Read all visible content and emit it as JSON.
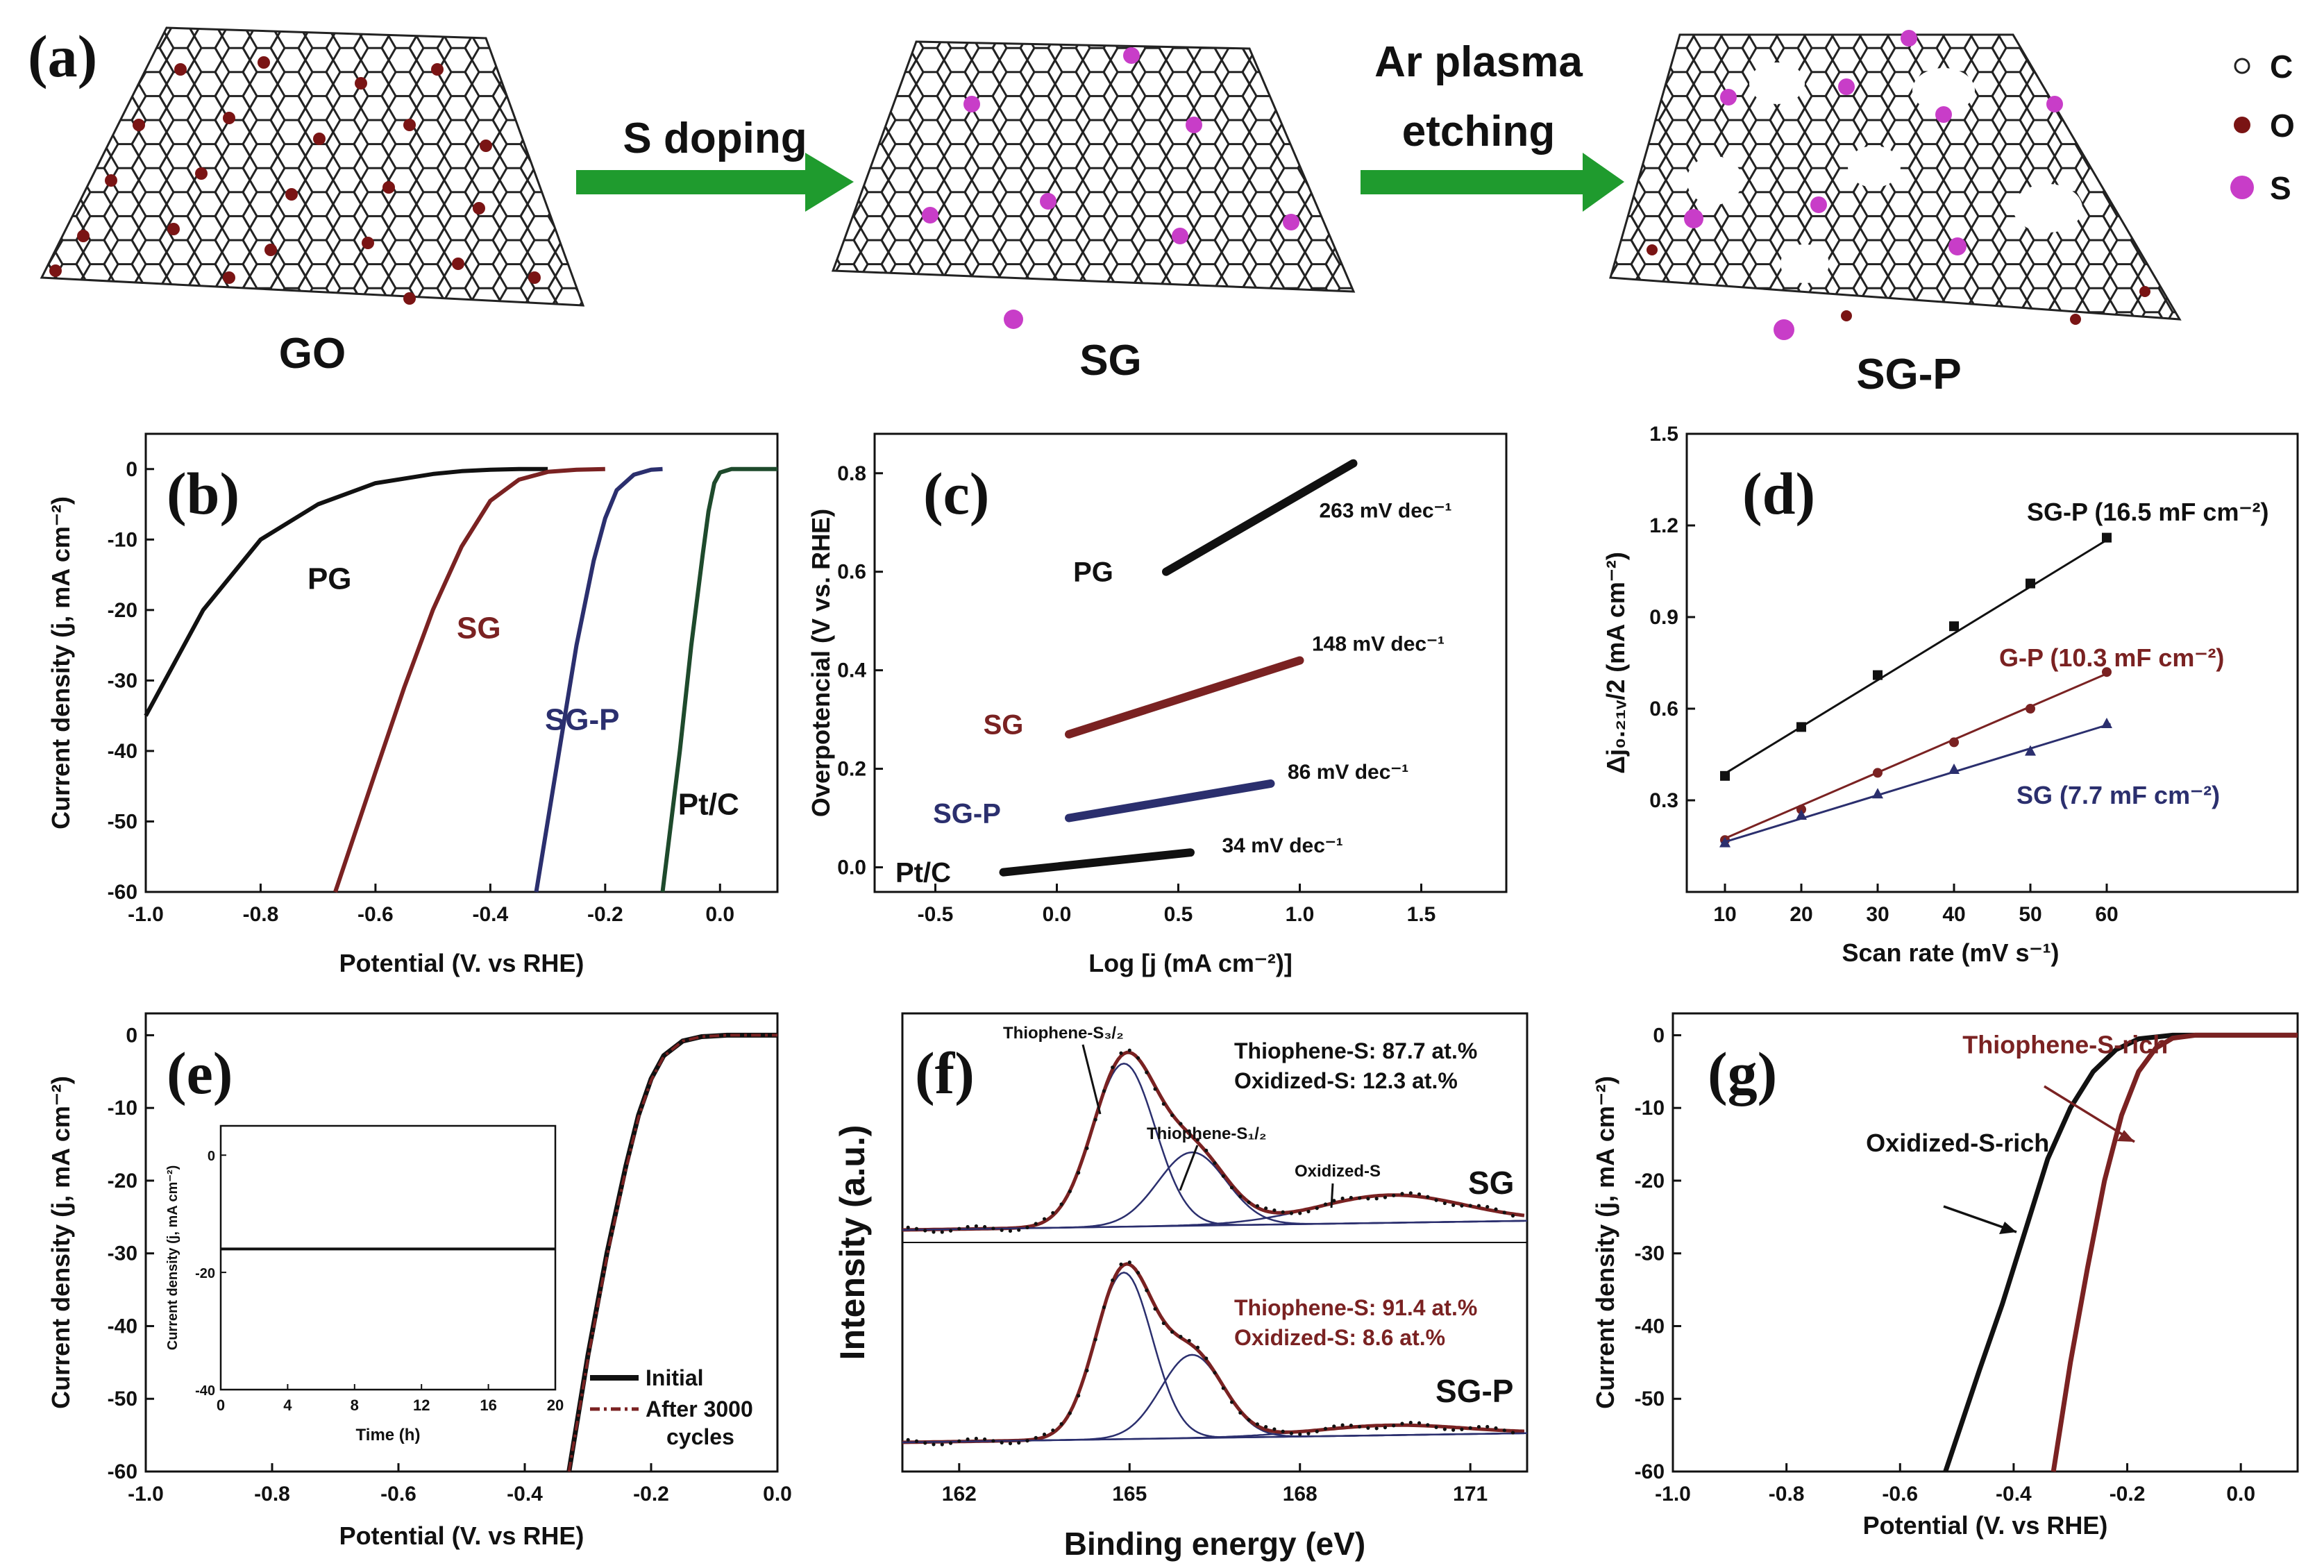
{
  "colors": {
    "black": "#111111",
    "darkred": "#7a2222",
    "navy": "#2b2f6e",
    "darkgreen": "#1e4a2c",
    "arrow": "#1f9b2e",
    "sulfur": "#c83dc8",
    "oxygen": "#7a1414"
  },
  "schematic": {
    "panel": "(a)",
    "labels": [
      "GO",
      "SG",
      "SG-P"
    ],
    "arrow1": "S doping",
    "arrow2_line1": "Ar plasma",
    "arrow2_line2": "etching",
    "legend": [
      {
        "symbol": "C",
        "icon": "carbon-atom-icon"
      },
      {
        "symbol": "O",
        "icon": "oxygen-atom-icon"
      },
      {
        "symbol": "S",
        "icon": "sulfur-atom-icon"
      }
    ]
  },
  "chart_data": [
    {
      "panel": "(b)",
      "type": "line",
      "xlabel": "Potential (V. vs RHE)",
      "ylabel": "Current density (j, mA cm⁻²)",
      "xlim": [
        -1.0,
        0.1
      ],
      "ylim": [
        -60,
        5
      ],
      "xticks": [
        "-1.0",
        "-0.8",
        "-0.6",
        "-0.4",
        "-0.2",
        "0.0"
      ],
      "yticks": [
        "0",
        "-10",
        "-20",
        "-30",
        "-40",
        "-50",
        "-60"
      ],
      "series": [
        {
          "name": "PG",
          "color": "#111111",
          "x": [
            -1.0,
            -0.9,
            -0.8,
            -0.7,
            -0.6,
            -0.5,
            -0.45,
            -0.4,
            -0.35,
            -0.3
          ],
          "y": [
            -35,
            -20,
            -10,
            -5,
            -2,
            -0.7,
            -0.3,
            -0.1,
            0,
            0
          ]
        },
        {
          "name": "SG",
          "color": "#7a2222",
          "x": [
            -0.67,
            -0.6,
            -0.55,
            -0.5,
            -0.45,
            -0.4,
            -0.35,
            -0.3,
            -0.25,
            -0.2
          ],
          "y": [
            -60,
            -43,
            -31,
            -20,
            -11,
            -4.5,
            -1.5,
            -0.4,
            -0.1,
            0
          ]
        },
        {
          "name": "SG-P",
          "color": "#2b2f6e",
          "x": [
            -0.32,
            -0.28,
            -0.25,
            -0.22,
            -0.2,
            -0.18,
            -0.15,
            -0.12,
            -0.1
          ],
          "y": [
            -60,
            -40,
            -25,
            -13,
            -7,
            -3,
            -0.8,
            -0.1,
            0
          ]
        },
        {
          "name": "Pt/C",
          "color": "#1e4a2c",
          "x": [
            -0.1,
            -0.07,
            -0.05,
            -0.03,
            -0.02,
            -0.01,
            0.0,
            0.02,
            0.1
          ],
          "y": [
            -60,
            -40,
            -25,
            -12,
            -6,
            -2,
            -0.5,
            0,
            0
          ]
        }
      ],
      "annotations": [
        {
          "text": "PG",
          "x": -0.68,
          "y": -17
        },
        {
          "text": "SG",
          "x": -0.42,
          "y": -24
        },
        {
          "text": "SG-P",
          "x": -0.24,
          "y": -37
        },
        {
          "text": "Pt/C",
          "x": -0.02,
          "y": -49
        }
      ]
    },
    {
      "panel": "(c)",
      "type": "line",
      "xlabel": "Log  [j (mA cm⁻²)]",
      "ylabel": "Overpotencial  (V vs. RHE)",
      "xlim": [
        -0.75,
        1.85
      ],
      "ylim": [
        -0.05,
        0.88
      ],
      "xticks": [
        "-0.5",
        "0.0",
        "0.5",
        "1.0",
        "1.5"
      ],
      "yticks": [
        "0.0",
        "0.2",
        "0.4",
        "0.6",
        "0.8"
      ],
      "series": [
        {
          "name": "PG",
          "color": "#111111",
          "x": [
            0.45,
            1.22
          ],
          "y": [
            0.6,
            0.82
          ]
        },
        {
          "name": "SG",
          "color": "#7a2222",
          "x": [
            0.05,
            1.0
          ],
          "y": [
            0.27,
            0.42
          ]
        },
        {
          "name": "SG-P",
          "color": "#2b2f6e",
          "x": [
            0.05,
            0.88
          ],
          "y": [
            0.1,
            0.17
          ]
        },
        {
          "name": "Pt/C",
          "color": "#111111",
          "x": [
            -0.22,
            0.55
          ],
          "y": [
            -0.01,
            0.03
          ]
        }
      ],
      "labels": [
        {
          "text": "PG",
          "x": 0.15,
          "y": 0.6
        },
        {
          "text": "SG",
          "x": -0.22,
          "y": 0.29
        },
        {
          "text": "SG-P",
          "x": -0.37,
          "y": 0.11
        },
        {
          "text": "Pt/C",
          "x": -0.55,
          "y": -0.01
        }
      ],
      "slopes": [
        {
          "text": "263 mV dec⁻¹",
          "x": 1.08,
          "y": 0.71
        },
        {
          "text": "148 mV dec⁻¹",
          "x": 1.05,
          "y": 0.44
        },
        {
          "text": "86 mV dec⁻¹",
          "x": 0.95,
          "y": 0.18
        },
        {
          "text": "34 mV dec⁻¹",
          "x": 0.68,
          "y": 0.03
        }
      ]
    },
    {
      "panel": "(d)",
      "type": "scatter",
      "xlabel": "Scan rate (mV s⁻¹)",
      "ylabel": "Δj₀.₂₁ᵥ/2 (mA cm⁻²)",
      "xlim": [
        5,
        85
      ],
      "ylim": [
        0.0,
        1.5
      ],
      "xticks": [
        "10",
        "20",
        "30",
        "40",
        "50",
        "60"
      ],
      "yticks": [
        "0.3",
        "0.6",
        "0.9",
        "1.2",
        "1.5"
      ],
      "series": [
        {
          "name": "SG-P (16.5 mF cm⁻²)",
          "color": "#111111",
          "marker": "square",
          "x": [
            10,
            20,
            30,
            40,
            50,
            60
          ],
          "y": [
            0.38,
            0.54,
            0.71,
            0.87,
            1.01,
            1.16
          ]
        },
        {
          "name": "G-P (10.3 mF cm⁻²)",
          "color": "#7a2222",
          "marker": "circle",
          "x": [
            10,
            20,
            30,
            40,
            50,
            60
          ],
          "y": [
            0.17,
            0.27,
            0.39,
            0.49,
            0.6,
            0.72
          ]
        },
        {
          "name": "SG (7.7 mF cm⁻²)",
          "color": "#2b2f6e",
          "marker": "triangle",
          "x": [
            10,
            20,
            30,
            40,
            50,
            60
          ],
          "y": [
            0.16,
            0.25,
            0.32,
            0.4,
            0.46,
            0.55
          ]
        }
      ]
    },
    {
      "panel": "(e)",
      "type": "line",
      "xlabel": "Potential (V. vs RHE)",
      "ylabel": "Current density (j, mA cm⁻²)",
      "xlim": [
        -1.0,
        0.0
      ],
      "ylim": [
        -60,
        3
      ],
      "xticks": [
        "-1.0",
        "-0.8",
        "-0.6",
        "-0.4",
        "-0.2",
        "0.0"
      ],
      "yticks": [
        "0",
        "-10",
        "-20",
        "-30",
        "-40",
        "-50",
        "-60"
      ],
      "series": [
        {
          "name": "Initial",
          "color": "#111111",
          "x": [
            -0.33,
            -0.3,
            -0.27,
            -0.24,
            -0.22,
            -0.2,
            -0.18,
            -0.15,
            -0.12,
            -0.08,
            0.0
          ],
          "y": [
            -60,
            -44,
            -30,
            -18,
            -11,
            -6,
            -2.8,
            -0.8,
            -0.2,
            0,
            0
          ]
        },
        {
          "name": "After 3000 cycles",
          "color": "#7a2222",
          "dashed": true,
          "x": [
            -0.33,
            -0.3,
            -0.27,
            -0.24,
            -0.22,
            -0.2,
            -0.18,
            -0.15,
            -0.12,
            -0.08,
            0.0
          ],
          "y": [
            -60,
            -44.5,
            -30.5,
            -18.5,
            -11.3,
            -6.2,
            -2.9,
            -0.8,
            -0.2,
            0,
            0
          ]
        }
      ],
      "legend": [
        "Initial",
        "After 3000",
        "cycles"
      ],
      "inset": {
        "xlabel": "Time (h)",
        "ylabel": "Current density  (j, mA cm⁻²)",
        "xlim": [
          0,
          20
        ],
        "ylim": [
          -40,
          5
        ],
        "xticks": [
          "0",
          "4",
          "8",
          "12",
          "16",
          "20"
        ],
        "yticks": [
          "0",
          "-20",
          "-40"
        ],
        "level": -16
      }
    },
    {
      "panel": "(f)",
      "type": "line",
      "xlabel": "Binding energy (eV)",
      "ylabel": "Intensity (a.u.)",
      "xlim": [
        161,
        172
      ],
      "xticks": [
        "162",
        "165",
        "168",
        "171"
      ],
      "spectra": [
        {
          "name": "SG",
          "peaks": [
            {
              "c": 164.9,
              "h": 1.0,
              "w": 0.55
            },
            {
              "c": 166.1,
              "h": 0.45,
              "w": 0.6
            },
            {
              "c": 169.6,
              "h": 0.17,
              "w": 1.3
            }
          ],
          "base": 0
        },
        {
          "name": "SG-P",
          "peaks": [
            {
              "c": 164.9,
              "h": 1.0,
              "w": 0.5
            },
            {
              "c": 166.1,
              "h": 0.5,
              "w": 0.55
            },
            {
              "c": 169.6,
              "h": 0.06,
              "w": 1.3
            }
          ],
          "base": 0
        }
      ],
      "annotations": {
        "thio32": "Thiophene-S₃/₂",
        "thio12": "Thiophene-S₁/₂",
        "oxid": "Oxidized-S",
        "sg": "SG",
        "sgp": "SG-P",
        "sg_t": "Thiophene-S: 87.7 at.%",
        "sg_o": "Oxidized-S: 12.3 at.%",
        "sgp_t": "Thiophene-S: 91.4 at.%",
        "sgp_o": "Oxidized-S: 8.6 at.%"
      }
    },
    {
      "panel": "(g)",
      "type": "line",
      "xlabel": "Potential (V. vs RHE)",
      "ylabel": "Current density (j, mA cm⁻²)",
      "xlim": [
        -1.0,
        0.1
      ],
      "ylim": [
        -60,
        3
      ],
      "xticks": [
        "-1.0",
        "-0.8",
        "-0.6",
        "-0.4",
        "-0.2",
        "0.0"
      ],
      "yticks": [
        "0",
        "-10",
        "-20",
        "-30",
        "-40",
        "-50",
        "-60"
      ],
      "series": [
        {
          "name": "Oxidized-S-rich",
          "color": "#111111",
          "x": [
            -0.52,
            -0.46,
            -0.42,
            -0.38,
            -0.34,
            -0.3,
            -0.26,
            -0.22,
            -0.18,
            -0.12,
            0.1
          ],
          "y": [
            -60,
            -46,
            -37,
            -27,
            -17,
            -10,
            -5,
            -2,
            -0.5,
            0,
            0
          ]
        },
        {
          "name": "Thiophene-S-rich",
          "color": "#7a2222",
          "x": [
            -0.33,
            -0.3,
            -0.27,
            -0.24,
            -0.21,
            -0.18,
            -0.15,
            -0.12,
            -0.08,
            0.1
          ],
          "y": [
            -60,
            -45,
            -32,
            -20,
            -11,
            -5,
            -1.8,
            -0.4,
            0,
            0
          ]
        }
      ],
      "labels": [
        {
          "text": "Oxidized-S-rich",
          "x": -0.66,
          "y": -16
        },
        {
          "text": "Thiophene-S-rich",
          "x": -0.49,
          "y": -2.5
        }
      ]
    }
  ]
}
